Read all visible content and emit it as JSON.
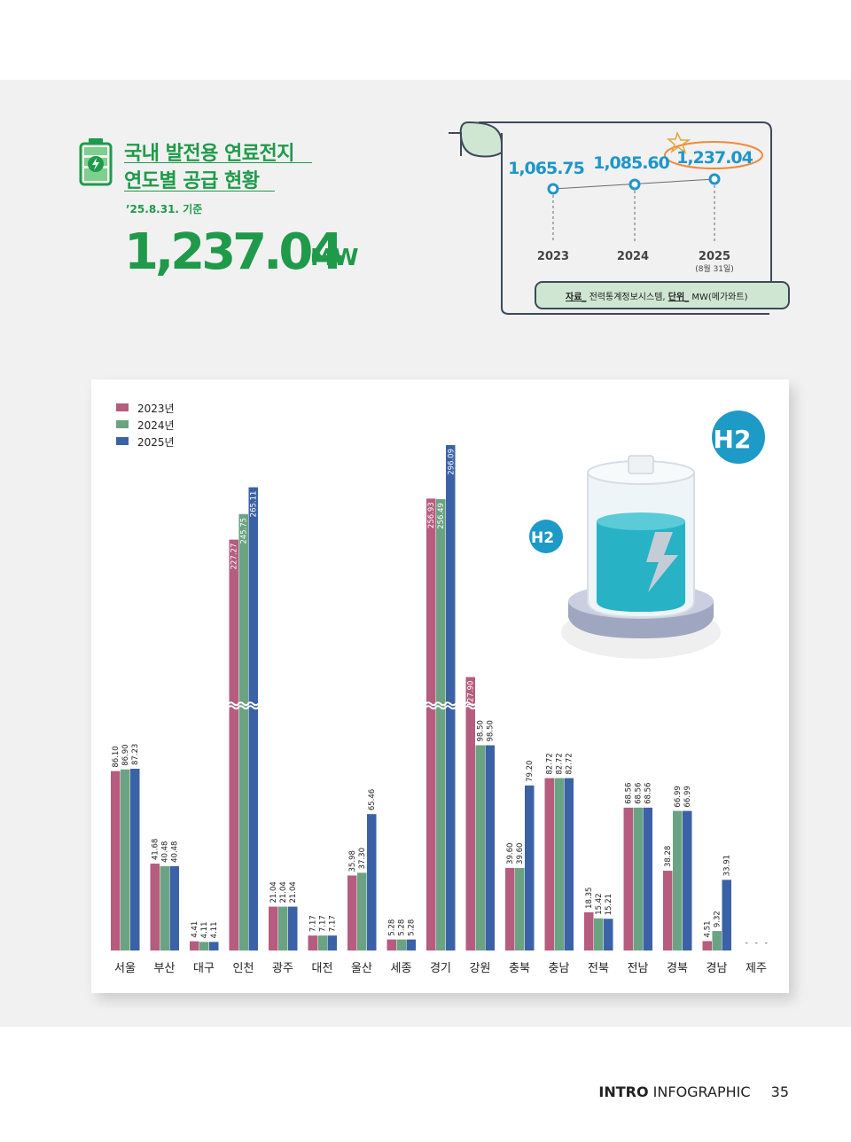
{
  "header": {
    "title_line1": "국내 발전용 연료전지",
    "title_line2": "연도별 공급 현황",
    "date": "’25.8.31. 기준",
    "total_value": "1,237.04",
    "total_unit": "MW"
  },
  "timeline": {
    "points": [
      {
        "value": "1,065.75",
        "year": "2023"
      },
      {
        "value": "1,085.60",
        "year": "2024"
      },
      {
        "value": "1,237.04",
        "year": "2025"
      }
    ],
    "note_2025": "(8월 31일)",
    "source_label": "자료_",
    "source_text": "전력통계정보시스템,",
    "unit_label": "단위_",
    "unit_text": "MW(메가와트)"
  },
  "illustration": {
    "badge_large": "H2",
    "badge_small": "H2"
  },
  "footer": {
    "section": "INTRO",
    "subsection": "INFOGRAPHIC",
    "page": "35"
  },
  "chart_data": {
    "type": "bar",
    "categories": [
      "서울",
      "부산",
      "대구",
      "인천",
      "광주",
      "대전",
      "울산",
      "세종",
      "경기",
      "강원",
      "충북",
      "충남",
      "전북",
      "전남",
      "경북",
      "경남",
      "제주"
    ],
    "series": [
      {
        "name": "2023년",
        "color": "#b65c7e",
        "values": [
          86.1,
          41.68,
          4.41,
          227.27,
          21.04,
          7.17,
          35.98,
          5.28,
          256.93,
          127.9,
          39.6,
          82.72,
          18.35,
          68.56,
          38.28,
          4.51,
          null
        ],
        "labels": [
          "86.10",
          "41.68",
          "4.41",
          "227.27",
          "21.04",
          "7.17",
          "35.98",
          "5.28",
          "256.93",
          "127.90",
          "39.60",
          "82.72",
          "18.35",
          "68.56",
          "38.28",
          "4.51",
          "-"
        ]
      },
      {
        "name": "2024년",
        "color": "#6aa382",
        "values": [
          86.9,
          40.48,
          4.11,
          245.75,
          21.04,
          7.17,
          37.3,
          5.28,
          256.49,
          98.5,
          39.6,
          82.72,
          15.42,
          68.56,
          66.99,
          9.32,
          null
        ],
        "labels": [
          "86.90",
          "40.48",
          "4.11",
          "245.75",
          "21.04",
          "7.17",
          "37.30",
          "5.28",
          "256.49",
          "98.50",
          "39.60",
          "82.72",
          "15.42",
          "68.56",
          "66.99",
          "9.32",
          "-"
        ]
      },
      {
        "name": "2025년",
        "color": "#3b62a6",
        "values": [
          87.23,
          40.48,
          4.11,
          265.11,
          21.04,
          7.17,
          65.46,
          5.28,
          296.09,
          98.5,
          79.2,
          82.72,
          15.21,
          68.56,
          66.99,
          33.91,
          null
        ],
        "labels": [
          "87.23",
          "40.48",
          "4.11",
          "265.11",
          "21.04",
          "7.17",
          "65.46",
          "5.28",
          "296.09",
          "98.50",
          "79.20",
          "82.72",
          "15.21",
          "68.56",
          "66.99",
          "33.91",
          "-"
        ]
      }
    ],
    "axis_break": true,
    "legend_position": "top-left",
    "grid": false
  }
}
